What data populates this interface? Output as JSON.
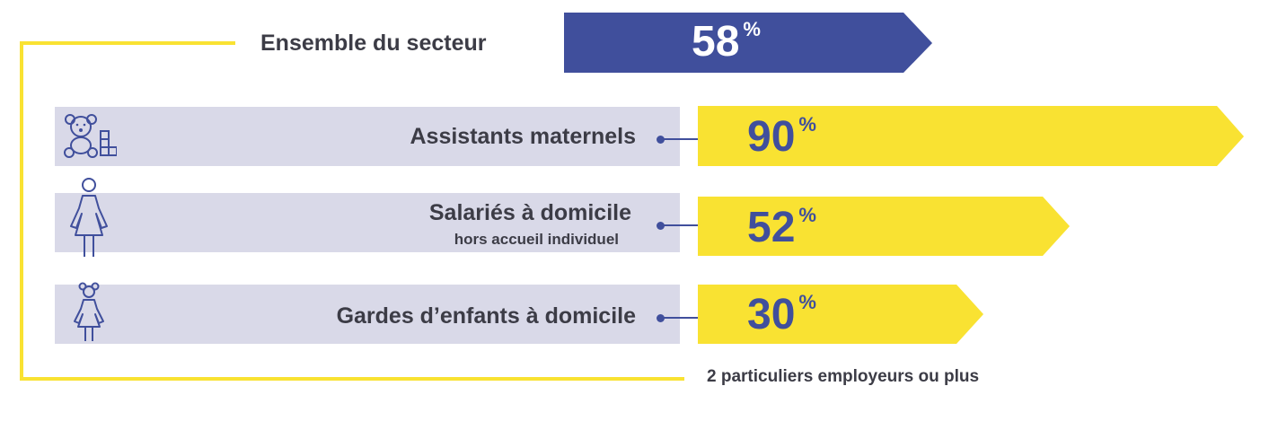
{
  "colors": {
    "total_bar": "#404f9c",
    "category_bar": "#f9e232",
    "panel": "#d9d9e8",
    "text": "#3c3c46",
    "value_on_yellow": "#404f9c",
    "value_on_blue": "#ffffff",
    "bracket": "#f9e232"
  },
  "chart_data": {
    "type": "bar",
    "orientation": "horizontal",
    "unit": "%",
    "total": {
      "label": "Ensemble du secteur",
      "value": 58
    },
    "categories": [
      {
        "label": "Assistants maternels",
        "sublabel": "",
        "value": 90,
        "icon": "teddy-bear-icon"
      },
      {
        "label": "Salariés à domicile",
        "sublabel": "hors accueil individuel",
        "value": 52,
        "icon": "woman-icon"
      },
      {
        "label": "Gardes d’enfants à domicile",
        "sublabel": "",
        "value": 30,
        "icon": "girl-icon"
      }
    ],
    "footnote": "2 particuliers employeurs ou plus"
  }
}
